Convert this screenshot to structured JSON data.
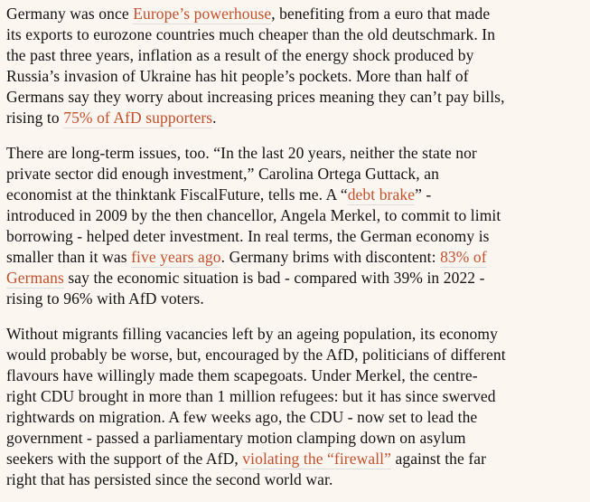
{
  "page": {
    "background_color": "#fcf6f0",
    "text_color": "#121212",
    "link_color": "#c0512e",
    "link_underline_color": "#dcdcdc"
  },
  "article": {
    "paragraphs": [
      {
        "runs": [
          {
            "type": "text",
            "text": "Germany was once "
          },
          {
            "type": "link",
            "text": "Europe’s powerhouse"
          },
          {
            "type": "text",
            "text": ", benefiting from a euro that made\nits exports to eurozone countries much cheaper than the old deutschmark. In\nthe past three years, inflation as a result of the energy shock produced by\nRussia’s invasion of Ukraine has hit people’s pockets. More than half of\nGermans say they worry about increasing prices meaning they can’t pay bills,\nrising to "
          },
          {
            "type": "link",
            "text": "75% of AfD supporters"
          },
          {
            "type": "text",
            "text": "."
          }
        ]
      },
      {
        "runs": [
          {
            "type": "text",
            "text": "There are long-term issues, too. “In the last 20 years, neither the state nor\nprivate sector did enough investment,” Carolina Ortega Guttack, an\neconomist at the thinktank FiscalFuture, tells me. A “"
          },
          {
            "type": "link",
            "text": "debt brake"
          },
          {
            "type": "text",
            "text": "” -\nintroduced in 2009 by the then chancellor, Angela Merkel, to commit to limit\nborrowing - helped deter investment. In real terms, the German economy is\nsmaller than it was "
          },
          {
            "type": "link",
            "text": "five years ago"
          },
          {
            "type": "text",
            "text": ". Germany brims with discontent: "
          },
          {
            "type": "link",
            "text": "83% of\nGermans"
          },
          {
            "type": "text",
            "text": " say the economic situation is bad - compared with 39% in 2022 -\nrising to 96% with AfD voters."
          }
        ]
      },
      {
        "runs": [
          {
            "type": "text",
            "text": "Without migrants filling vacancies left by an ageing population, its economy\nwould probably be worse, but, encouraged by the AfD, politicians of different\nflavours have willingly made them scapegoats. Under Merkel, the centre-\nright CDU brought in more than 1 million refugees: but it has since swerved\nrightwards on migration. A few weeks ago, the CDU - now set to lead the\ngovernment - passed a parliamentary motion clamping down on asylum\nseekers with the support of the AfD, "
          },
          {
            "type": "link",
            "text": "violating the “firewall”"
          },
          {
            "type": "text",
            "text": " against the far\nright that has persisted since the second world war."
          }
        ]
      }
    ]
  }
}
